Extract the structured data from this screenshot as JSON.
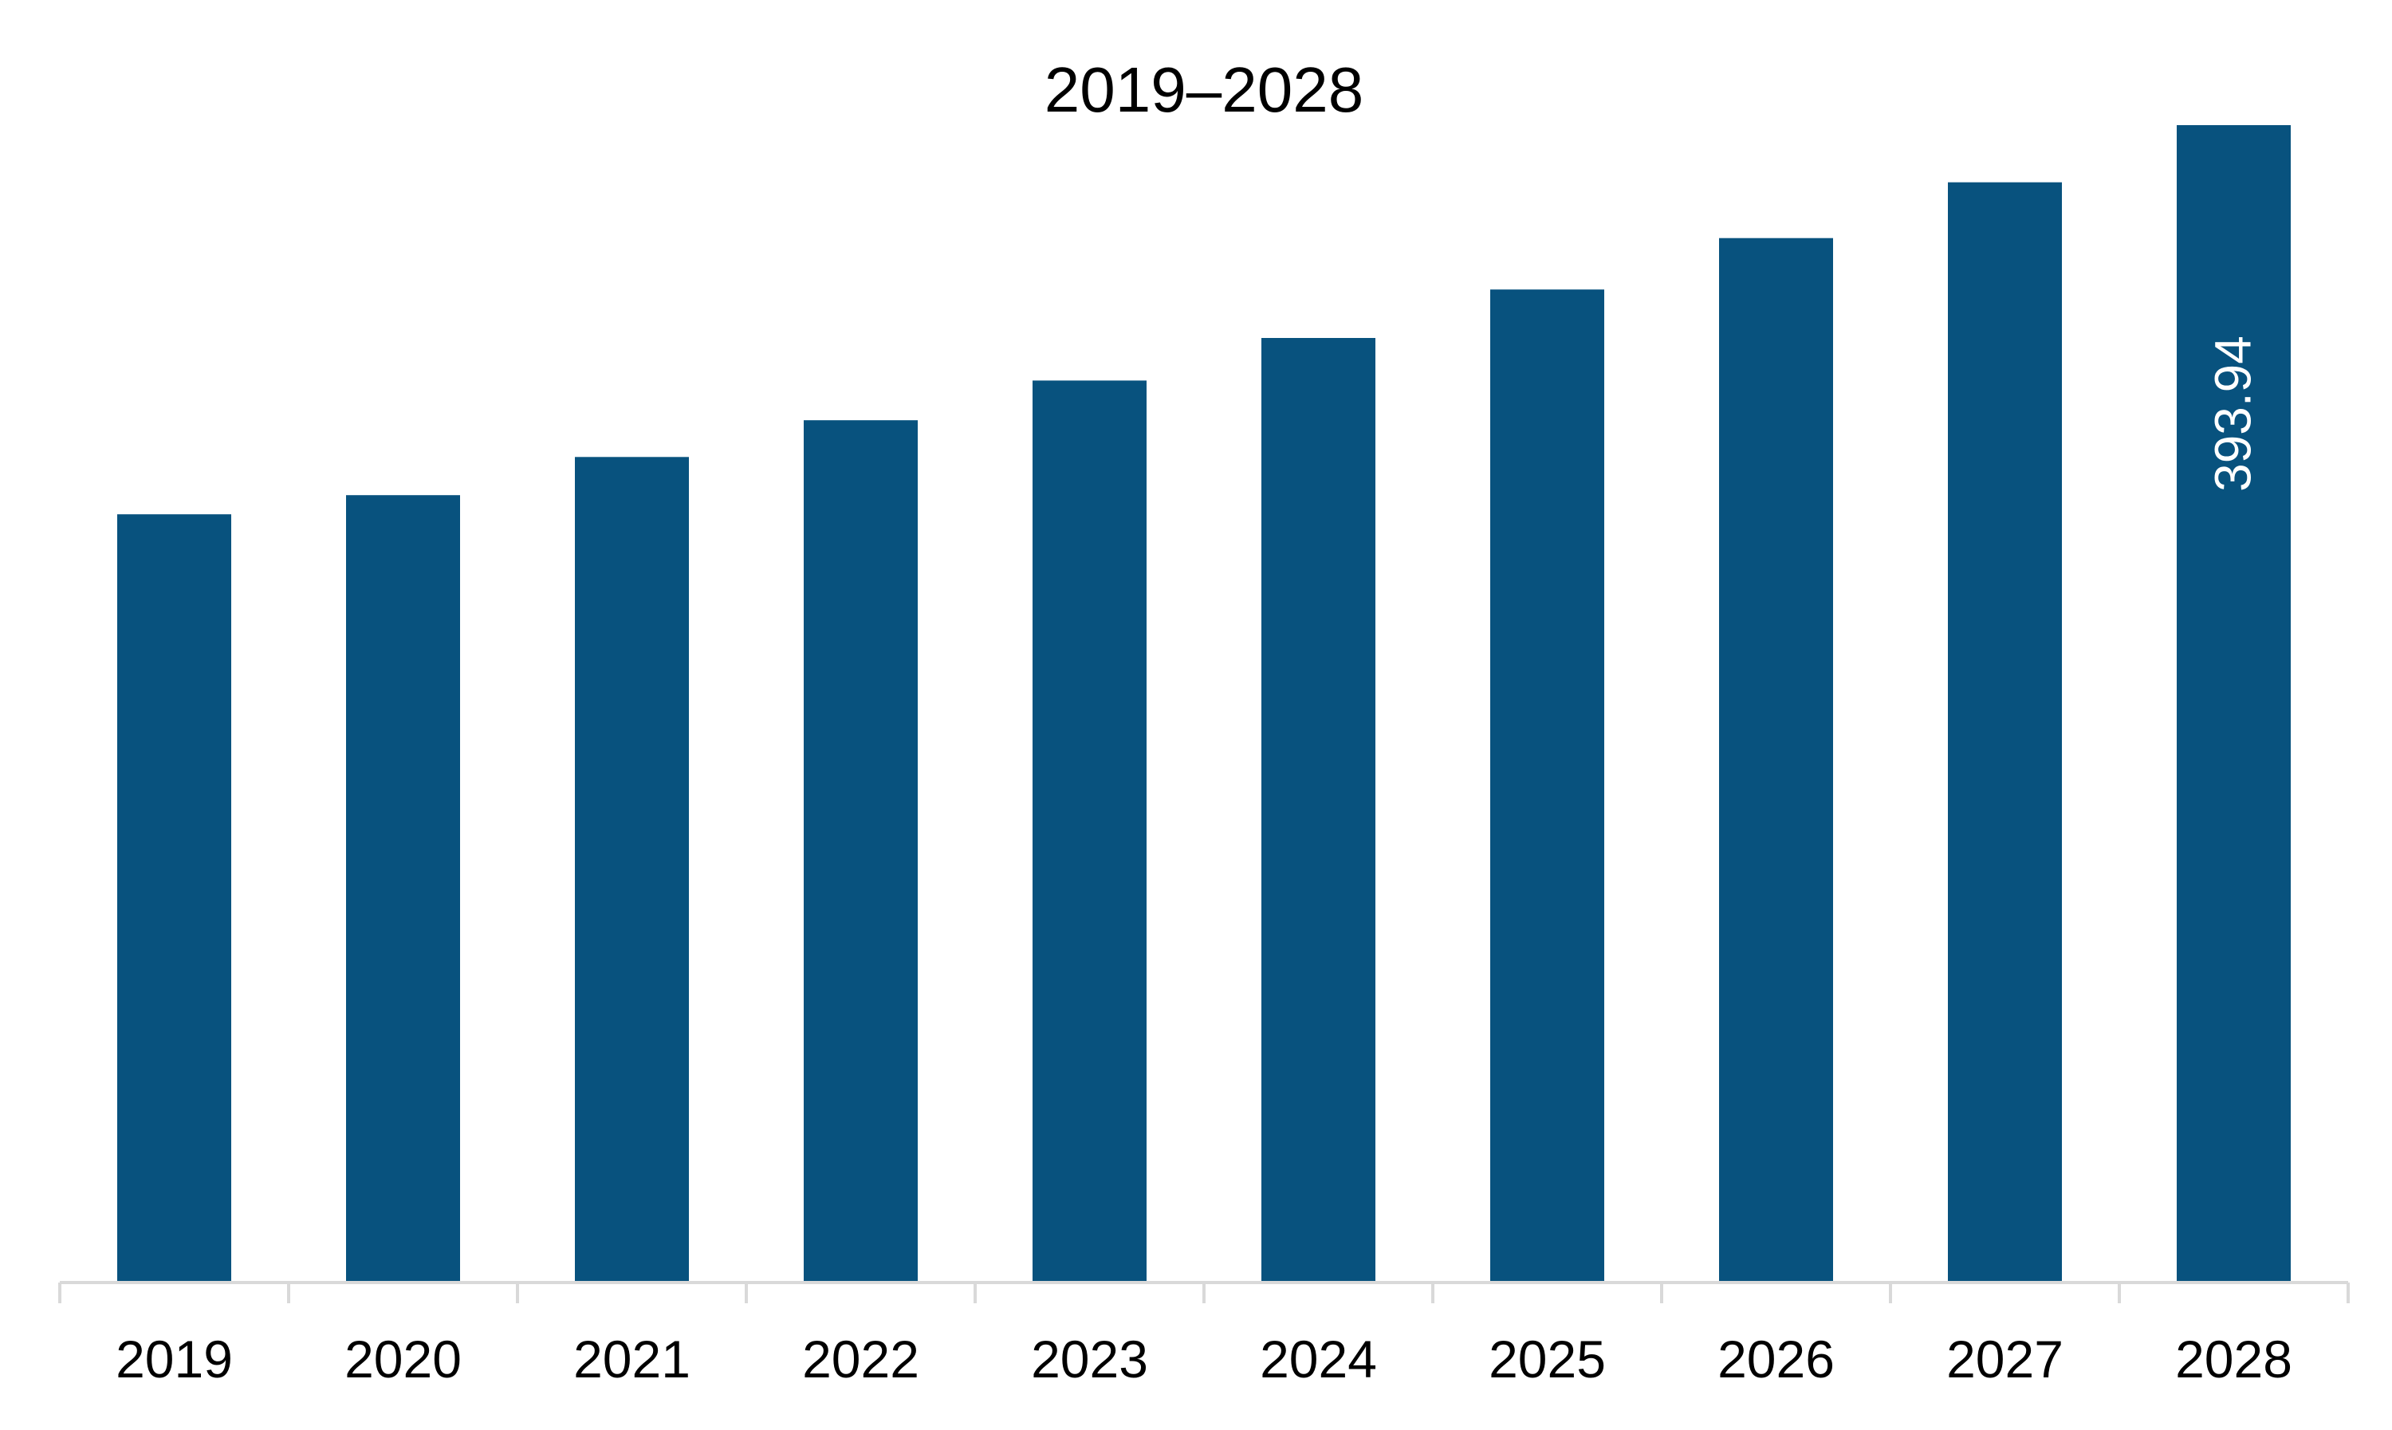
{
  "chart_data": {
    "type": "bar",
    "title": "2019–2028",
    "xlabel": "",
    "ylabel": "",
    "categories": [
      "2019",
      "2020",
      "2021",
      "2022",
      "2023",
      "2024",
      "2025",
      "2026",
      "2027",
      "2028"
    ],
    "values": [
      261.5,
      268.0,
      281.0,
      293.5,
      307.0,
      321.5,
      338.0,
      355.5,
      374.5,
      393.94
    ],
    "data_labels": [
      {
        "category": "2028",
        "text": "393.94",
        "orientation": "vertical"
      }
    ],
    "ylim": [
      0,
      393.94
    ],
    "grid": false,
    "legend": "none",
    "colors": {
      "bar": "#08527E",
      "axis": "#D9D9D9",
      "text": "#000000",
      "label_on_bar": "#FFFFFF"
    }
  }
}
